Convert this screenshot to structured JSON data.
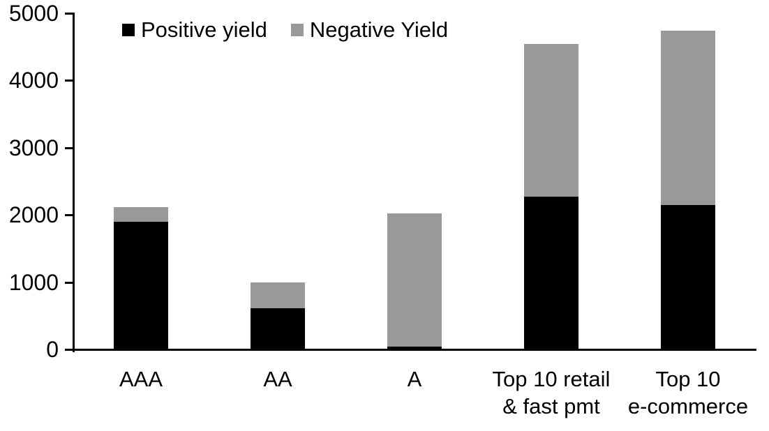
{
  "chart_data": {
    "type": "bar",
    "stacked": true,
    "title": "",
    "xlabel": "",
    "ylabel": "",
    "categories": [
      "AAA",
      "AA",
      "A",
      "Top 10 retail & fast pmt",
      "Top 10 e-commerce"
    ],
    "category_label_lines": [
      [
        "AAA"
      ],
      [
        "AA"
      ],
      [
        "A"
      ],
      [
        "Top 10 retail",
        "& fast pmt"
      ],
      [
        "Top 10",
        "e-commerce"
      ]
    ],
    "series": [
      {
        "name": "Positive yield",
        "color": "#000000",
        "values": [
          1900,
          620,
          50,
          2280,
          2150
        ]
      },
      {
        "name": "Negative Yield",
        "color": "#999999",
        "values": [
          220,
          380,
          1980,
          2270,
          2600
        ]
      }
    ],
    "totals": [
      2120,
      1000,
      2030,
      4550,
      4750
    ],
    "ylim": [
      0,
      5000
    ],
    "yticks": [
      "0",
      "1000",
      "2000",
      "3000",
      "4000",
      "5000"
    ],
    "legend_position": "top-left",
    "grid": false,
    "axis_color": "#000000",
    "background_color": "#ffffff"
  }
}
